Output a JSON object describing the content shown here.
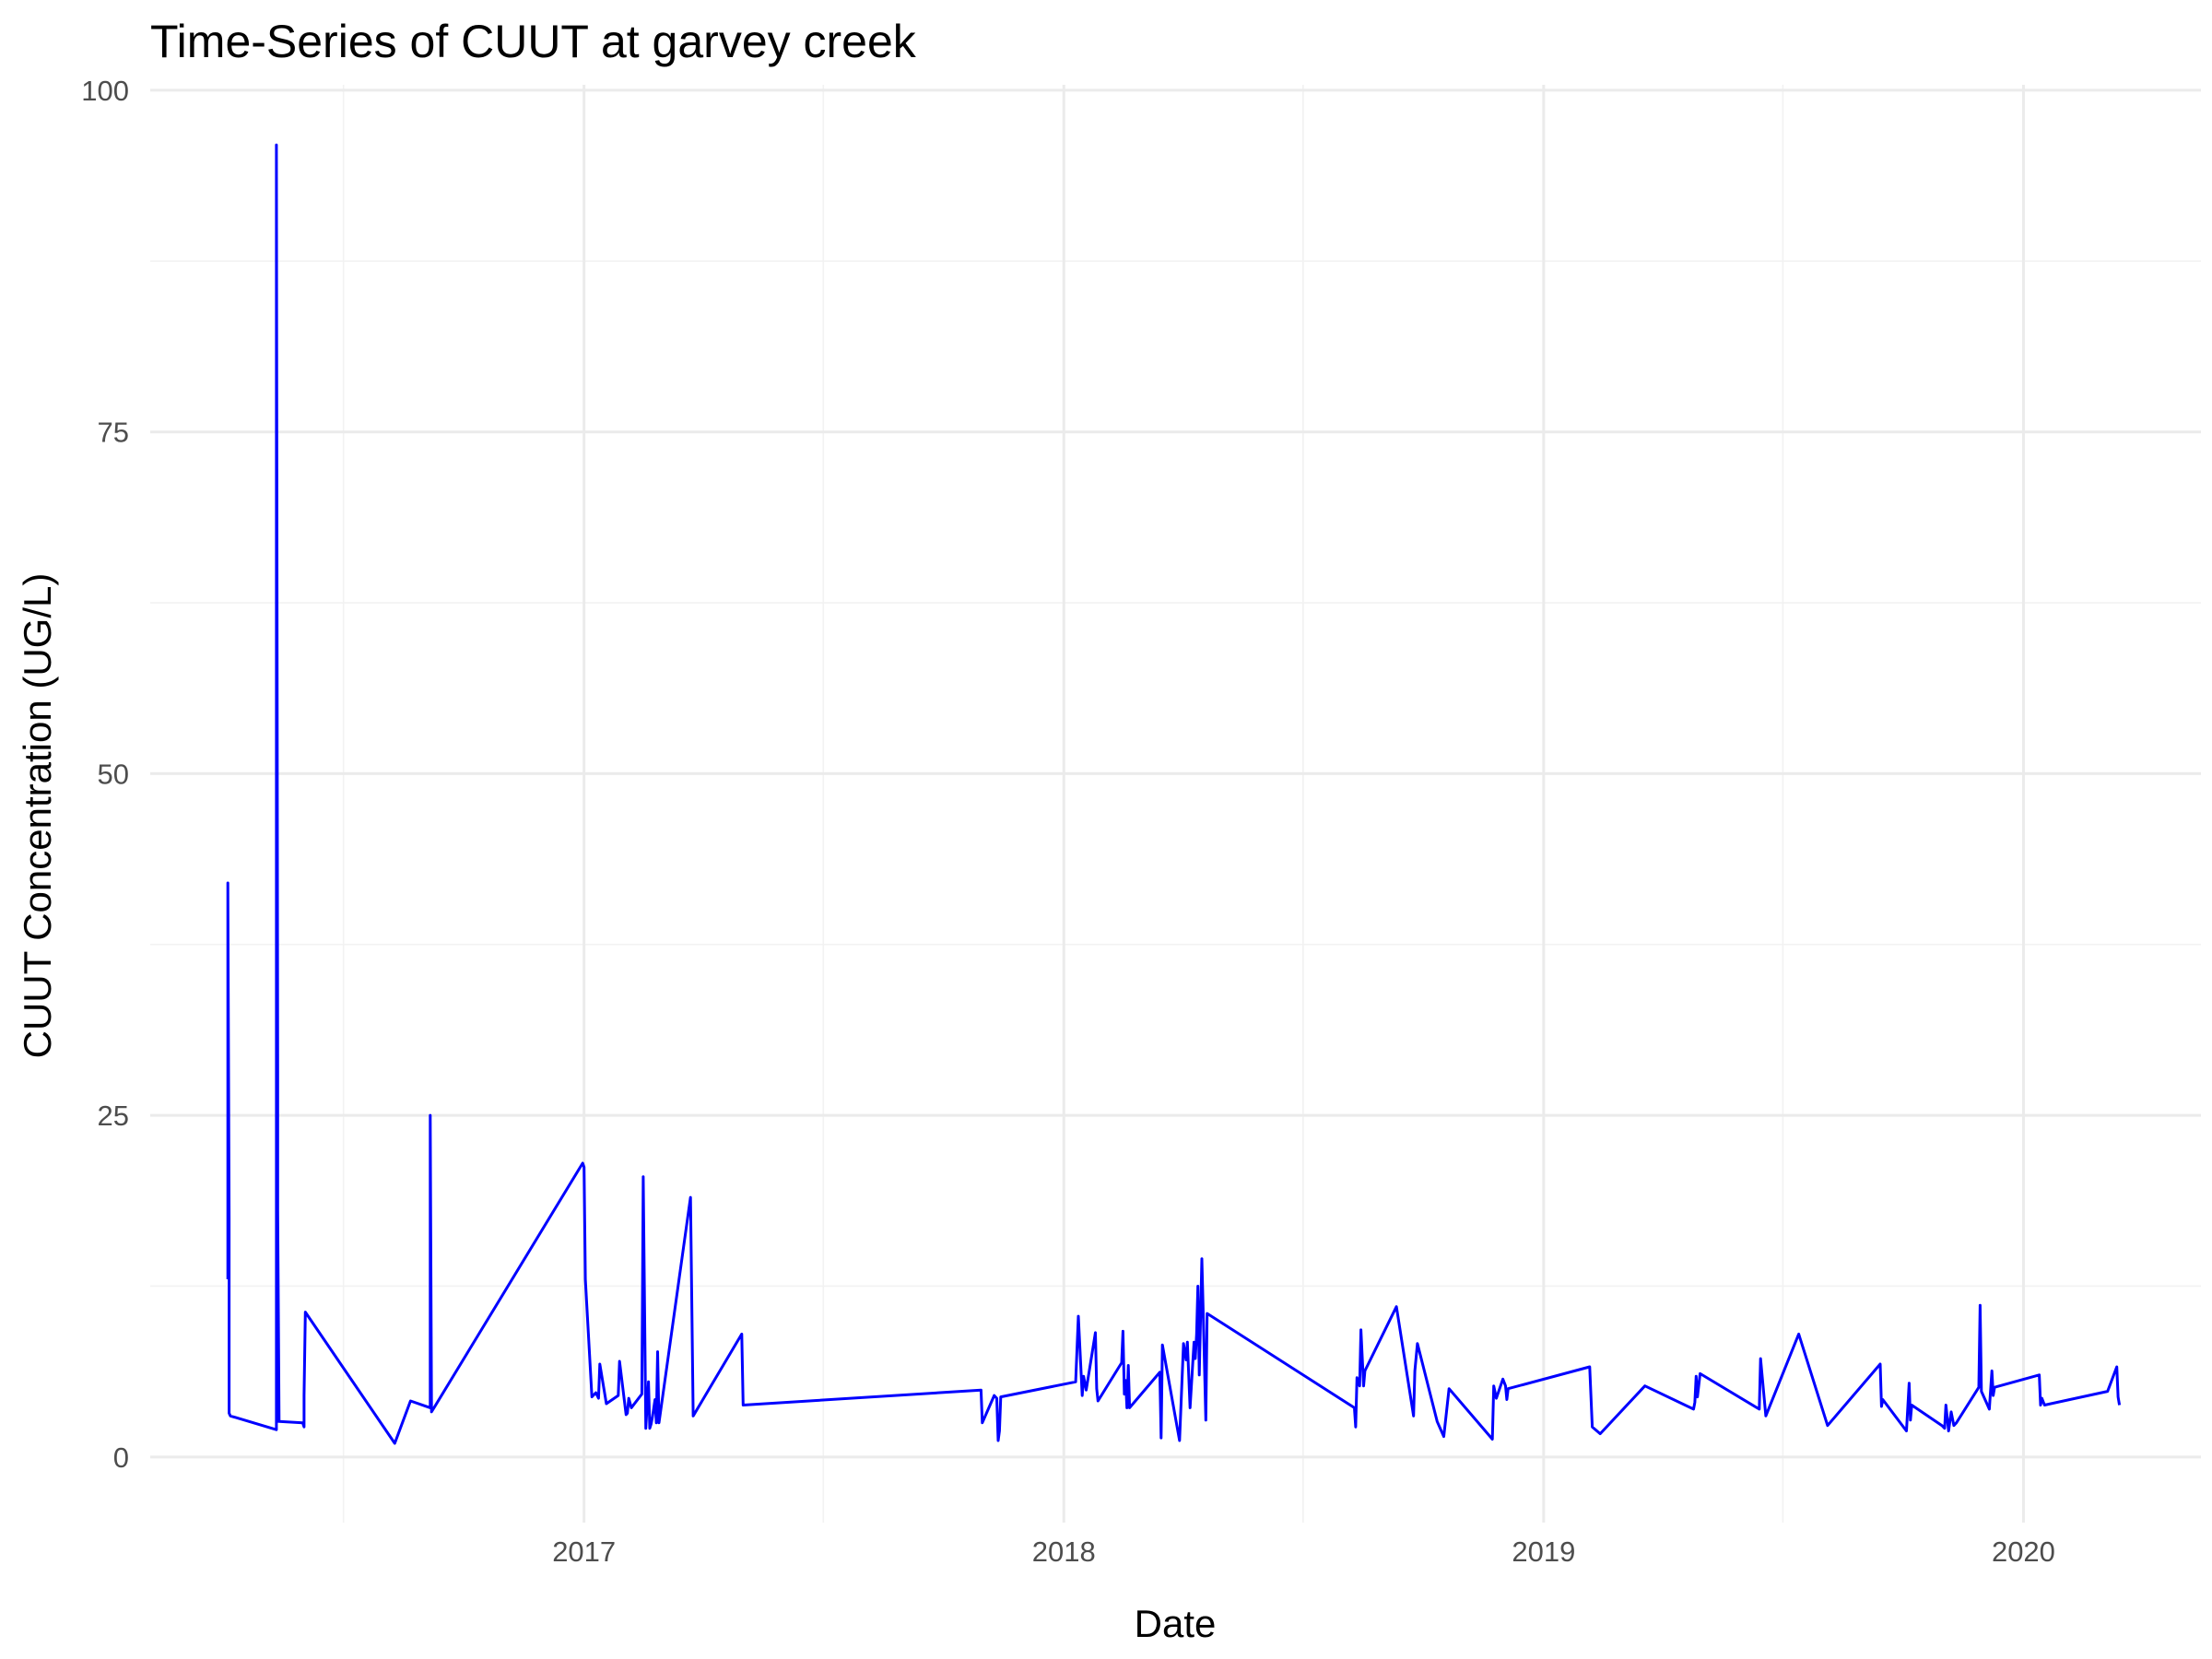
{
  "chart_data": {
    "type": "line",
    "title": "Time-Series of CUUT at garvey creek",
    "xlabel": "Date",
    "ylabel": "CUUT Concentration (UG/L)",
    "xlim": [
      "2016-02-06",
      "2020-05-15"
    ],
    "ylim": [
      -4.8,
      100.4
    ],
    "x_ticks": [
      {
        "value": "2017-01-01",
        "label": "2017"
      },
      {
        "value": "2018-01-01",
        "label": "2018"
      },
      {
        "value": "2019-01-01",
        "label": "2019"
      },
      {
        "value": "2020-01-01",
        "label": "2020"
      }
    ],
    "x_minor_ticks": [
      "2016-07-02",
      "2017-07-02",
      "2018-07-02",
      "2019-07-02"
    ],
    "y_ticks": [
      0,
      25,
      50,
      75,
      100
    ],
    "y_minor_ticks": [
      12.5,
      37.5,
      62.5,
      87.5
    ],
    "grid": true,
    "colors": {
      "line": "#0000ff"
    },
    "series": [
      {
        "x": [
          "2016-04-05",
          "2016-04-05",
          "2016-04-06",
          "2016-04-06",
          "2016-04-07",
          "2016-05-12",
          "2016-05-12",
          "2016-05-13",
          "2016-05-13",
          "2016-05-13",
          "2016-05-14",
          "2016-06-01",
          "2016-06-02",
          "2016-06-02",
          "2016-06-03",
          "2016-08-10",
          "2016-08-22",
          "2016-09-06",
          "2016-09-06",
          "2016-09-07",
          "2016-09-07",
          "2016-12-31",
          "2017-01-01",
          "2017-01-02",
          "2017-01-07",
          "2017-01-10",
          "2017-01-12",
          "2017-01-13",
          "2017-01-18",
          "2017-01-27",
          "2017-01-28",
          "2017-02-02",
          "2017-02-03",
          "2017-02-04",
          "2017-02-06",
          "2017-02-14",
          "2017-02-15",
          "2017-02-17",
          "2017-02-19",
          "2017-02-20",
          "2017-02-21",
          "2017-02-22",
          "2017-02-24",
          "2017-02-25",
          "2017-02-26",
          "2017-02-27",
          "2017-03-23",
          "2017-03-25",
          "2017-05-01",
          "2017-05-02",
          "2017-10-30",
          "2017-10-31",
          "2017-11-09",
          "2017-11-11",
          "2017-11-12",
          "2017-11-13",
          "2017-11-14",
          "2018-01-10",
          "2018-01-12",
          "2018-01-15",
          "2018-01-16",
          "2018-01-18",
          "2018-01-25",
          "2018-01-26",
          "2018-01-27",
          "2018-02-14",
          "2018-02-15",
          "2018-02-16",
          "2018-02-17",
          "2018-02-18",
          "2018-02-19",
          "2018-02-20",
          "2018-03-15",
          "2018-03-16",
          "2018-03-17",
          "2018-03-30",
          "2018-04-02",
          "2018-04-04",
          "2018-04-05",
          "2018-04-07",
          "2018-04-10",
          "2018-04-11",
          "2018-04-12",
          "2018-04-13",
          "2018-04-14",
          "2018-04-16",
          "2018-04-17",
          "2018-04-19",
          "2018-04-20",
          "2018-08-10",
          "2018-08-11",
          "2018-08-12",
          "2018-08-14",
          "2018-08-15",
          "2018-08-17",
          "2018-08-18",
          "2018-09-11",
          "2018-09-24",
          "2018-09-25",
          "2018-09-27",
          "2018-10-12",
          "2018-10-17",
          "2018-10-21",
          "2018-11-23",
          "2018-11-24",
          "2018-11-26",
          "2018-12-01",
          "2018-12-03",
          "2018-12-04",
          "2018-12-05",
          "2019-02-05",
          "2019-02-07",
          "2019-02-13",
          "2019-03-19",
          "2019-04-25",
          "2019-04-26",
          "2019-04-27",
          "2019-04-28",
          "2019-04-30",
          "2019-06-14",
          "2019-06-15",
          "2019-06-19",
          "2019-07-14",
          "2019-08-05",
          "2019-09-14",
          "2019-09-15",
          "2019-09-16",
          "2019-10-04",
          "2019-10-06",
          "2019-10-07",
          "2019-10-08",
          "2019-10-31",
          "2019-11-02",
          "2019-11-03",
          "2019-11-05",
          "2019-11-07",
          "2019-11-09",
          "2019-11-11",
          "2019-11-28",
          "2019-11-29",
          "2019-11-30",
          "2019-12-06",
          "2019-12-08",
          "2019-12-09",
          "2019-12-10",
          "2020-01-13",
          "2020-01-14",
          "2020-01-15",
          "2020-01-17",
          "2020-03-05",
          "2020-03-12",
          "2020-03-13",
          "2020-03-14"
        ],
        "values": [
          13,
          42,
          17.5,
          3.2,
          3,
          2,
          96,
          28,
          2.6,
          18,
          2.6,
          2.5,
          2.2,
          4.5,
          10.6,
          1,
          4.1,
          3.6,
          25,
          3.4,
          3.3,
          21.5,
          21.2,
          13,
          4.4,
          4.7,
          4.3,
          6.8,
          3.9,
          4.5,
          7,
          3.1,
          3.2,
          4.3,
          3.6,
          4.6,
          20.5,
          2.1,
          5.5,
          2.1,
          2.4,
          2.9,
          4.2,
          2.5,
          7.7,
          2.5,
          19,
          3,
          9,
          3.8,
          4.9,
          2.5,
          4.5,
          4.3,
          1.2,
          1.9,
          4.4,
          5.5,
          10.3,
          4.5,
          5.9,
          4.9,
          9.1,
          5,
          4.1,
          6.9,
          9.2,
          4.6,
          5.6,
          3.6,
          6.7,
          3.6,
          6.2,
          1.4,
          8.2,
          1.2,
          8.3,
          7.1,
          8.4,
          3.6,
          8.4,
          7.2,
          9,
          12.5,
          6,
          14.5,
          10.5,
          2.7,
          10.5,
          3.6,
          2.2,
          5.8,
          5.2,
          9.3,
          5.2,
          6.3,
          11,
          3,
          6.3,
          8.3,
          2.6,
          1.5,
          5,
          1.3,
          5.2,
          4.3,
          5.7,
          5.2,
          4.2,
          5,
          6.6,
          2.2,
          1.7,
          5.2,
          3.5,
          4,
          5.9,
          4.4,
          6.1,
          3.5,
          7.2,
          3,
          9,
          2.3,
          6.8,
          3.7,
          4.2,
          1.9,
          5.4,
          2.7,
          3.8,
          2.3,
          2.1,
          3.8,
          1.9,
          3.3,
          2.3,
          2.5,
          5.1,
          11.1,
          4.8,
          3.5,
          6.3,
          4.5,
          5.1,
          6,
          3.8,
          4.3,
          3.8,
          4.8,
          6.6,
          4.4,
          3.8
        ]
      }
    ]
  }
}
